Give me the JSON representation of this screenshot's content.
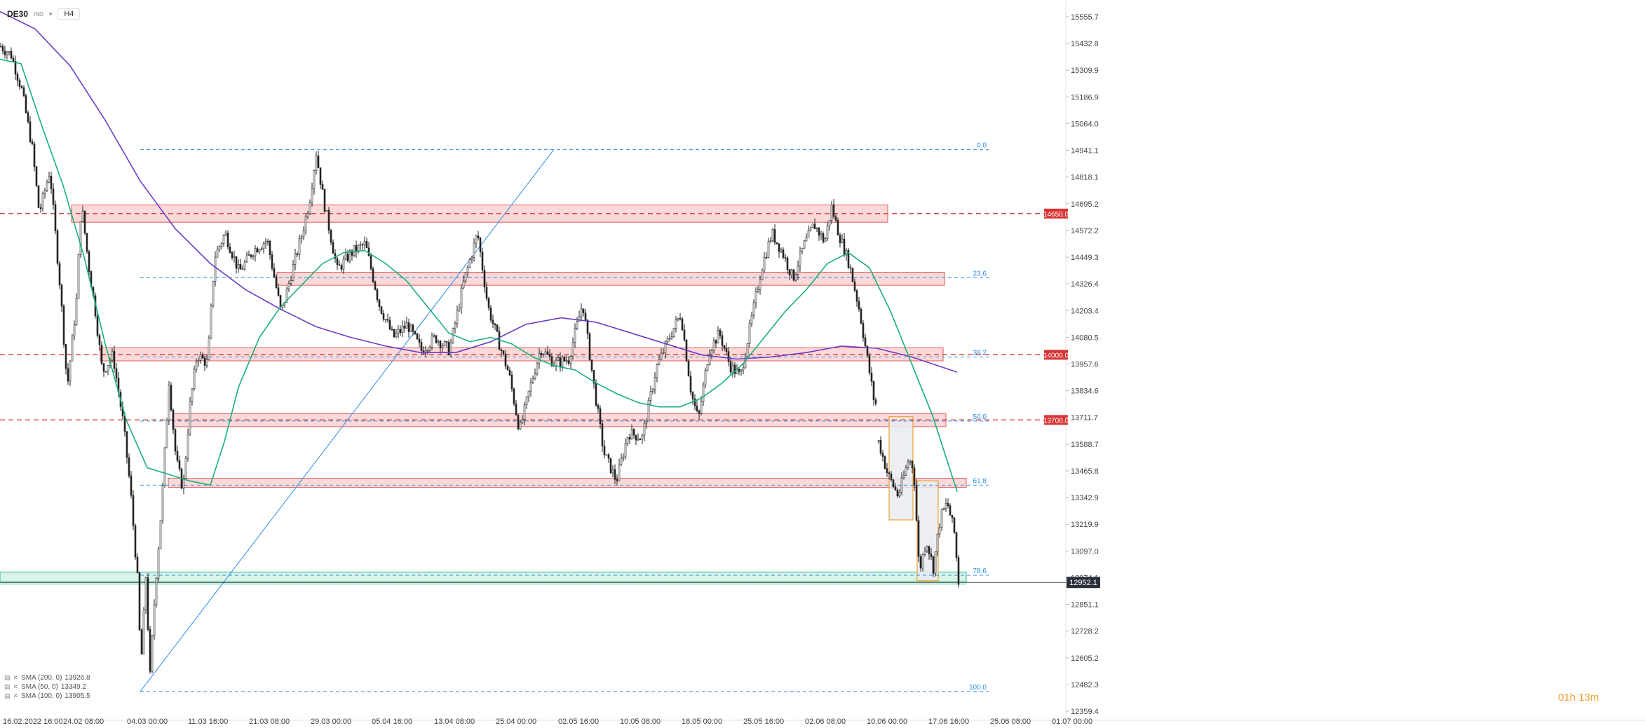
{
  "header": {
    "symbol": "DE30",
    "instrument_tag": "IND",
    "timeframe": "H4"
  },
  "indicators": [
    {
      "label": "SMA (200, 0)",
      "value": "13926.8",
      "color": "#6a3dc6"
    },
    {
      "label": "SMA (50, 0)",
      "value": "13349.2",
      "color": "#18b07a"
    },
    {
      "label": "SMA (100, 0)",
      "value": "13905.5",
      "color": "#6a3dc6"
    }
  ],
  "countdown": "01h 13m",
  "chart_data": {
    "type": "candlestick",
    "symbol": "DE30",
    "timeframe": "H4",
    "y_ticks": [
      "15555.7",
      "15432.8",
      "15309.9",
      "15186.9",
      "15064.0",
      "14941.1",
      "14818.1",
      "14695.2",
      "14572.2",
      "14449.3",
      "14326.4",
      "14203.4",
      "14080.5",
      "13957.6",
      "13834.6",
      "13711.7",
      "13588.7",
      "13465.8",
      "13342.9",
      "13219.9",
      "13097.0",
      "12974.1",
      "12851.1",
      "12728.2",
      "12605.2",
      "12482.3",
      "12359.4"
    ],
    "x_ticks": [
      "16.02.2022 16:00",
      "24.02 08:00",
      "04.03 00:00",
      "11.03 16:00",
      "21.03 08:00",
      "29.03 00:00",
      "05.04 16:00",
      "13.04 08:00",
      "25.04 00:00",
      "02.05 16:00",
      "10.05 08:00",
      "18.05 00:00",
      "25.05 16:00",
      "02.06 08:00",
      "10.06 00:00",
      "17.06 16:00",
      "25.06 08:00",
      "01.07 00:00"
    ],
    "ylim": [
      12359.4,
      15555.7
    ],
    "current_price": "12952.1",
    "price_levels": [
      {
        "label": "14650.0",
        "value": 14650.0
      },
      {
        "label": "14000.0",
        "value": 14000.0
      },
      {
        "label": "13700.0",
        "value": 13700.0
      }
    ],
    "fib_levels": [
      {
        "label": "0.0",
        "value": 14945
      },
      {
        "label": "23.6",
        "value": 14355
      },
      {
        "label": "38.2",
        "value": 13990
      },
      {
        "label": "50.0",
        "value": 13695
      },
      {
        "label": "61.8",
        "value": 13400
      },
      {
        "label": "78.6",
        "value": 12985
      },
      {
        "label": "100.0",
        "value": 12450
      }
    ],
    "zones": [
      {
        "x0": 102,
        "x1": 1266,
        "top": 14690,
        "bottom": 14610
      },
      {
        "x0": 395,
        "x1": 1347,
        "top": 14380,
        "bottom": 14320
      },
      {
        "x0": 143,
        "x1": 1345,
        "top": 14032,
        "bottom": 13972
      },
      {
        "x0": 246,
        "x1": 1349,
        "top": 13729,
        "bottom": 13669
      },
      {
        "x0": 240,
        "x1": 1378,
        "top": 13432,
        "bottom": 13390
      },
      {
        "x0": 0,
        "x1": 1378,
        "top": 13000,
        "bottom": 12955
      }
    ],
    "anchors_price": [
      [
        0,
        15420
      ],
      [
        15,
        15380
      ],
      [
        30,
        15220
      ],
      [
        45,
        14950
      ],
      [
        55,
        14650
      ],
      [
        70,
        14850
      ],
      [
        85,
        14300
      ],
      [
        95,
        13850
      ],
      [
        108,
        14250
      ],
      [
        115,
        14700
      ],
      [
        125,
        14420
      ],
      [
        135,
        14200
      ],
      [
        145,
        13920
      ],
      [
        160,
        14000
      ],
      [
        175,
        13680
      ],
      [
        185,
        13380
      ],
      [
        195,
        12970
      ],
      [
        200,
        12560
      ],
      [
        207,
        12980
      ],
      [
        213,
        12520
      ],
      [
        220,
        12910
      ],
      [
        230,
        13330
      ],
      [
        240,
        13880
      ],
      [
        250,
        13520
      ],
      [
        260,
        13380
      ],
      [
        270,
        13770
      ],
      [
        280,
        14000
      ],
      [
        295,
        13960
      ],
      [
        305,
        14450
      ],
      [
        320,
        14560
      ],
      [
        340,
        14380
      ],
      [
        360,
        14480
      ],
      [
        380,
        14530
      ],
      [
        400,
        14190
      ],
      [
        415,
        14380
      ],
      [
        430,
        14560
      ],
      [
        440,
        14700
      ],
      [
        450,
        14930
      ],
      [
        460,
        14720
      ],
      [
        480,
        14390
      ],
      [
        500,
        14470
      ],
      [
        520,
        14510
      ],
      [
        540,
        14230
      ],
      [
        560,
        14080
      ],
      [
        580,
        14140
      ],
      [
        600,
        14020
      ],
      [
        620,
        14080
      ],
      [
        640,
        14020
      ],
      [
        660,
        14330
      ],
      [
        680,
        14560
      ],
      [
        695,
        14220
      ],
      [
        710,
        14060
      ],
      [
        725,
        13910
      ],
      [
        740,
        13650
      ],
      [
        755,
        13850
      ],
      [
        770,
        14030
      ],
      [
        790,
        13960
      ],
      [
        810,
        13980
      ],
      [
        830,
        14240
      ],
      [
        845,
        13880
      ],
      [
        860,
        13550
      ],
      [
        878,
        13420
      ],
      [
        895,
        13640
      ],
      [
        915,
        13620
      ],
      [
        935,
        13940
      ],
      [
        955,
        14090
      ],
      [
        970,
        14190
      ],
      [
        985,
        13820
      ],
      [
        995,
        13700
      ],
      [
        1010,
        14020
      ],
      [
        1025,
        14100
      ],
      [
        1040,
        13950
      ],
      [
        1055,
        13900
      ],
      [
        1070,
        14150
      ],
      [
        1085,
        14400
      ],
      [
        1100,
        14560
      ],
      [
        1115,
        14470
      ],
      [
        1130,
        14350
      ],
      [
        1145,
        14500
      ],
      [
        1160,
        14600
      ],
      [
        1175,
        14520
      ],
      [
        1185,
        14680
      ],
      [
        1195,
        14560
      ],
      [
        1210,
        14420
      ],
      [
        1225,
        14200
      ],
      [
        1235,
        14000
      ],
      [
        1245,
        13800
      ],
      [
        1250,
        13760
      ],
      null,
      [
        1252,
        13600
      ],
      [
        1265,
        13450
      ],
      [
        1280,
        13350
      ],
      [
        1295,
        13520
      ],
      [
        1302,
        13480
      ],
      [
        1310,
        13000
      ],
      [
        1320,
        13150
      ],
      [
        1330,
        13020
      ],
      [
        1340,
        13250
      ],
      [
        1350,
        13320
      ],
      [
        1360,
        13180
      ],
      [
        1366,
        12955
      ]
    ],
    "anchors_sma50": [
      [
        0,
        15360
      ],
      [
        30,
        15340
      ],
      [
        60,
        15050
      ],
      [
        90,
        14780
      ],
      [
        120,
        14450
      ],
      [
        150,
        14050
      ],
      [
        180,
        13700
      ],
      [
        210,
        13480
      ],
      [
        240,
        13450
      ],
      [
        270,
        13420
      ],
      [
        300,
        13400
      ],
      [
        320,
        13600
      ],
      [
        340,
        13850
      ],
      [
        370,
        14080
      ],
      [
        400,
        14220
      ],
      [
        430,
        14320
      ],
      [
        460,
        14420
      ],
      [
        490,
        14470
      ],
      [
        520,
        14480
      ],
      [
        550,
        14420
      ],
      [
        580,
        14340
      ],
      [
        610,
        14220
      ],
      [
        640,
        14100
      ],
      [
        670,
        14060
      ],
      [
        700,
        14080
      ],
      [
        730,
        14050
      ],
      [
        760,
        13990
      ],
      [
        790,
        13950
      ],
      [
        820,
        13930
      ],
      [
        850,
        13870
      ],
      [
        880,
        13820
      ],
      [
        910,
        13780
      ],
      [
        940,
        13760
      ],
      [
        970,
        13760
      ],
      [
        1000,
        13800
      ],
      [
        1030,
        13870
      ],
      [
        1060,
        13960
      ],
      [
        1090,
        14080
      ],
      [
        1120,
        14200
      ],
      [
        1150,
        14300
      ],
      [
        1180,
        14420
      ],
      [
        1210,
        14470
      ],
      [
        1240,
        14400
      ],
      [
        1270,
        14200
      ],
      [
        1300,
        13960
      ],
      [
        1330,
        13720
      ],
      [
        1365,
        13370
      ]
    ],
    "anchors_sma200": [
      [
        0,
        15580
      ],
      [
        50,
        15500
      ],
      [
        100,
        15330
      ],
      [
        150,
        15080
      ],
      [
        200,
        14800
      ],
      [
        250,
        14580
      ],
      [
        300,
        14420
      ],
      [
        350,
        14300
      ],
      [
        400,
        14210
      ],
      [
        450,
        14130
      ],
      [
        500,
        14080
      ],
      [
        550,
        14040
      ],
      [
        600,
        14010
      ],
      [
        650,
        14010
      ],
      [
        700,
        14060
      ],
      [
        750,
        14140
      ],
      [
        800,
        14170
      ],
      [
        850,
        14150
      ],
      [
        900,
        14100
      ],
      [
        950,
        14050
      ],
      [
        1000,
        14000
      ],
      [
        1050,
        13980
      ],
      [
        1100,
        13990
      ],
      [
        1150,
        14010
      ],
      [
        1200,
        14040
      ],
      [
        1250,
        14030
      ],
      [
        1300,
        13990
      ],
      [
        1365,
        13920
      ]
    ],
    "fib_line": {
      "from": [
        200,
        12450
      ],
      "to": [
        790,
        14945
      ]
    },
    "rect_boxes": [
      {
        "x0": 1268,
        "x1": 1302,
        "top": 13715,
        "bottom": 13240,
        "fill": "#e9ebef",
        "stroke": "#f0a030"
      },
      {
        "x0": 1308,
        "x1": 1338,
        "top": 13420,
        "bottom": 12960,
        "fill": "#e9ebef",
        "stroke": "#f0a030"
      }
    ]
  }
}
